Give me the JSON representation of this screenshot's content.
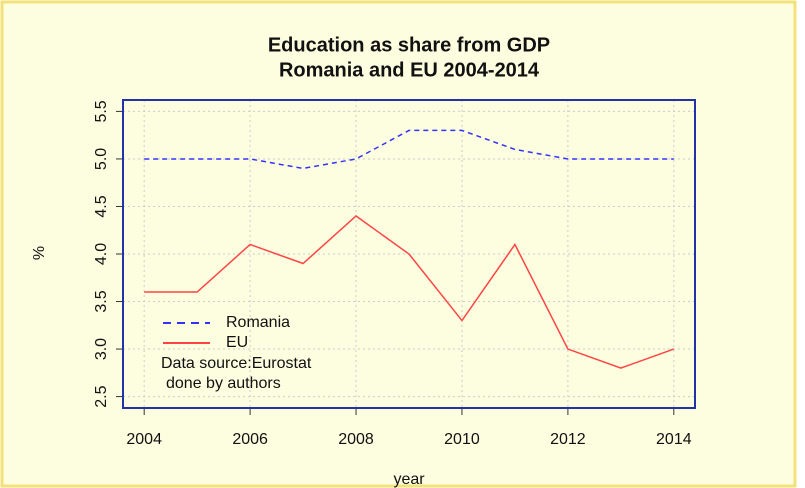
{
  "chart_data": {
    "type": "line",
    "title": "Education as share from GDP",
    "subtitle": "Romania and EU 2004-2014",
    "x_label": "year",
    "y_label": "%",
    "x": [
      2004,
      2005,
      2006,
      2007,
      2008,
      2009,
      2010,
      2011,
      2012,
      2013,
      2014
    ],
    "series": [
      {
        "name": "Romania",
        "color": "#3333ff",
        "dash": true,
        "values": [
          5.0,
          5.0,
          5.0,
          4.9,
          5.0,
          5.3,
          5.3,
          5.1,
          5.0,
          5.0,
          5.0
        ]
      },
      {
        "name": "EU",
        "color": "#ff4444",
        "dash": false,
        "values": [
          3.6,
          3.6,
          4.1,
          3.9,
          4.4,
          4.0,
          3.3,
          4.1,
          3.0,
          2.8,
          3.0
        ]
      }
    ],
    "annotations": [
      "Data source:Eurostat",
      "done by authors"
    ],
    "xlim": [
      2003.6,
      2014.4
    ],
    "xticks": [
      2004,
      2006,
      2008,
      2010,
      2012,
      2014
    ],
    "ylim": [
      2.38,
      5.62
    ],
    "yticks": [
      2.5,
      {
        "value": 3,
        "label": "3.0"
      },
      3.5,
      {
        "value": 4,
        "label": "4.0"
      },
      4.5,
      {
        "value": 5,
        "label": "5.0"
      },
      5.5
    ],
    "grid": true,
    "legend": "bottom-left"
  }
}
